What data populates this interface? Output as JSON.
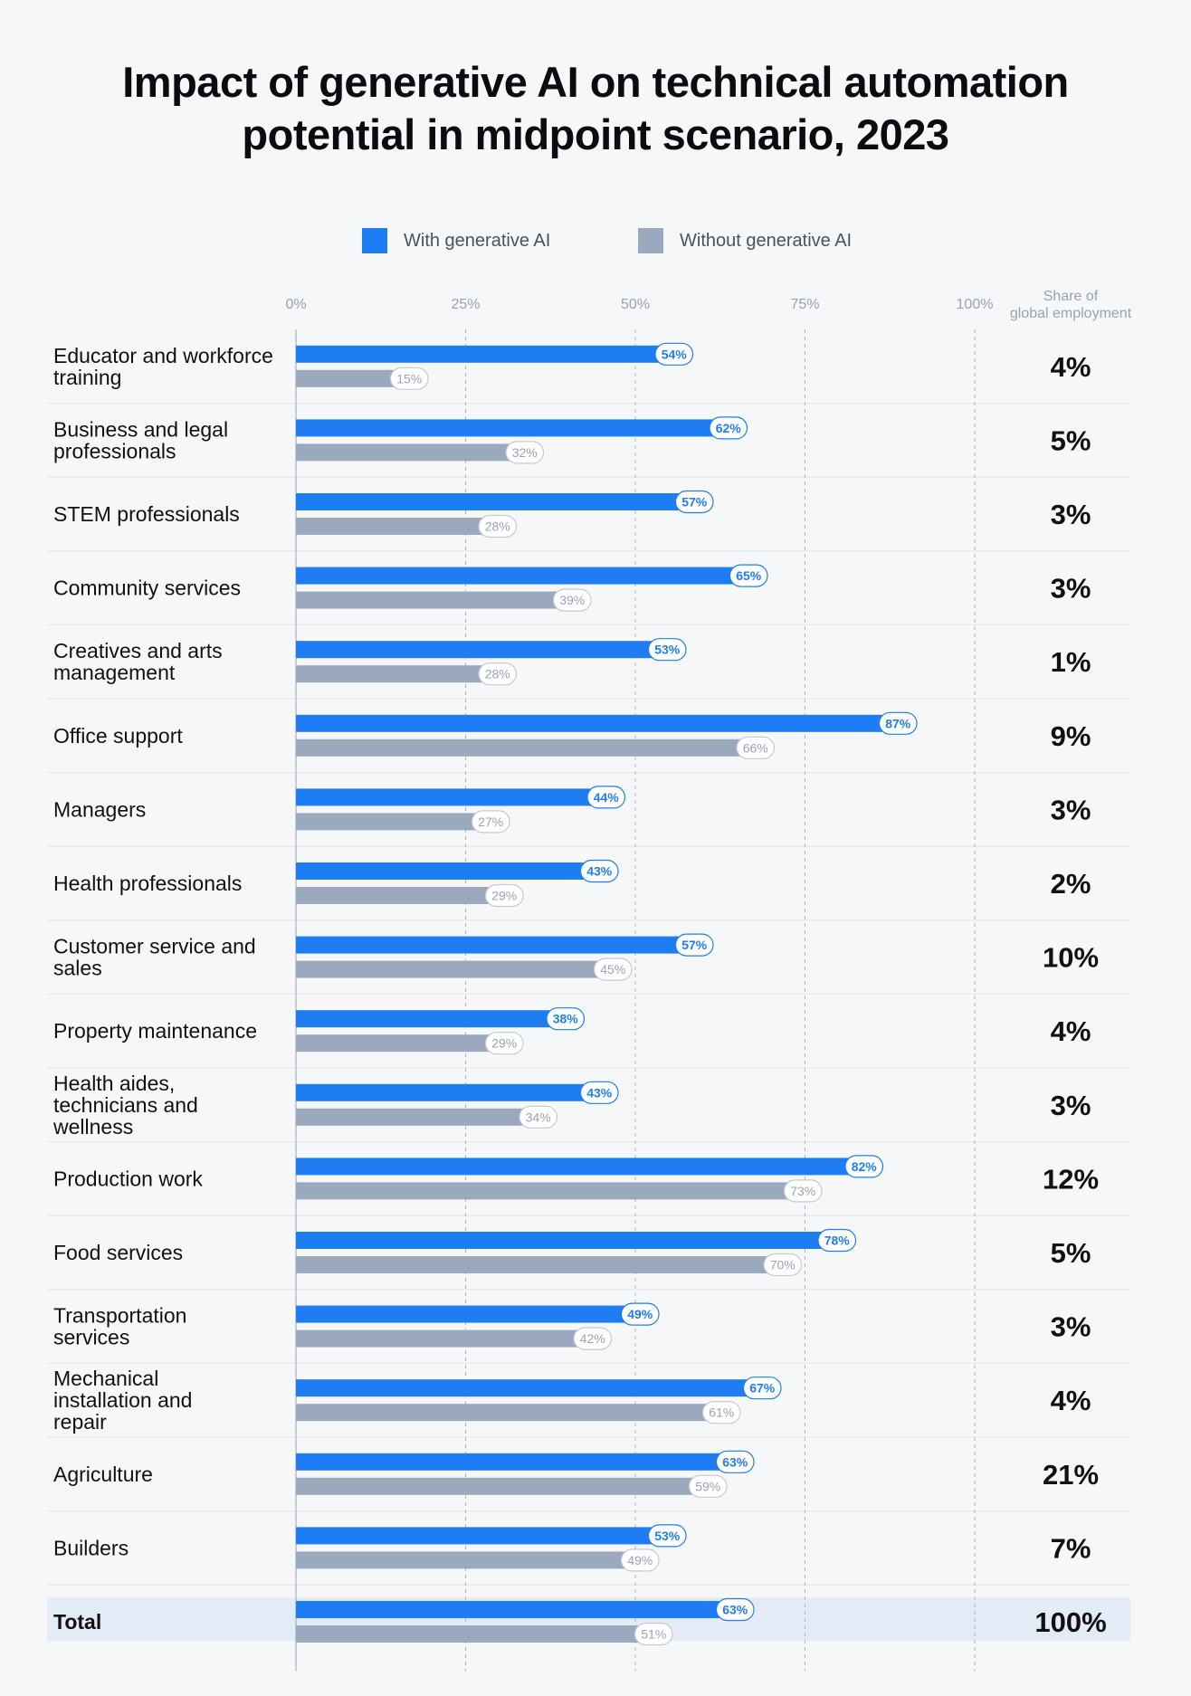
{
  "chart_data": {
    "type": "bar",
    "orientation": "horizontal",
    "title": "Impact of generative AI on technical automation potential in midpoint scenario, 2023",
    "xlim": [
      0,
      100
    ],
    "x_ticks": [
      "0%",
      "25%",
      "50%",
      "75%",
      "100%"
    ],
    "grid": "dashed vertical at 25%, 50%, 75%, 100%",
    "legend_position": "top-center",
    "share_column_header": "Share of global employment",
    "categories": [
      "Educator and workforce training",
      "Business and legal professionals",
      "STEM professionals",
      "Community services",
      "Creatives and arts management",
      "Office support",
      "Managers",
      "Health professionals",
      "Customer service and sales",
      "Property maintenance",
      "Health aides, technicians and wellness",
      "Production work",
      "Food services",
      "Transportation services",
      "Mechanical installation and repair",
      "Agriculture",
      "Builders",
      "Total"
    ],
    "series": [
      {
        "name": "With generative AI",
        "color": "#1f7df3",
        "values": [
          54,
          62,
          57,
          65,
          53,
          87,
          44,
          43,
          57,
          38,
          43,
          82,
          78,
          49,
          67,
          63,
          53,
          63
        ]
      },
      {
        "name": "Without generative AI",
        "color": "#9aa9be",
        "values": [
          15,
          32,
          28,
          39,
          28,
          66,
          27,
          29,
          45,
          29,
          34,
          73,
          70,
          42,
          61,
          59,
          49,
          51
        ]
      }
    ],
    "share_of_global_employment": [
      "4%",
      "5%",
      "3%",
      "3%",
      "1%",
      "9%",
      "3%",
      "2%",
      "10%",
      "4%",
      "3%",
      "12%",
      "5%",
      "3%",
      "4%",
      "21%",
      "7%",
      "100%"
    ]
  },
  "colors": {
    "with_ai": "#1f7df3",
    "without_ai": "#9aa9be",
    "total_row_bg": "#e3ebf7",
    "grid": "#aeb5c1"
  }
}
